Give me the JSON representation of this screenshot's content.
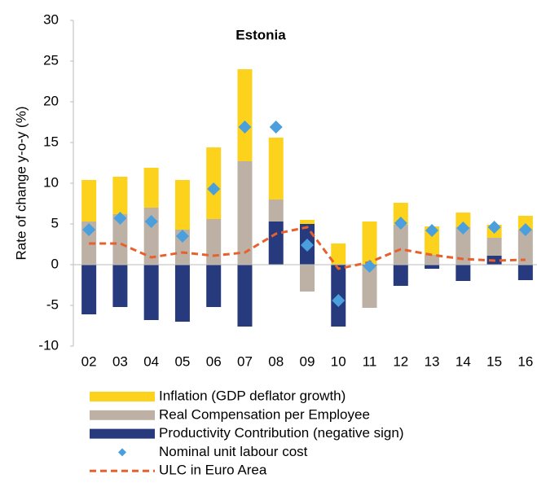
{
  "chart_data": {
    "type": "bar",
    "stacked": true,
    "title": "Estonia",
    "y_label": "Rate of change y-o-y (%)",
    "categories": [
      "02",
      "03",
      "04",
      "05",
      "06",
      "07",
      "08",
      "09",
      "10",
      "11",
      "12",
      "13",
      "14",
      "15",
      "16"
    ],
    "series": [
      {
        "name": "Inflation (GDP deflator growth)",
        "type": "bar",
        "color": "#fcd21c",
        "values": [
          5.1,
          4.6,
          4.9,
          6.1,
          8.8,
          11.3,
          7.6,
          0.5,
          2.6,
          5.3,
          2.7,
          3.5,
          1.8,
          1.6,
          1.7
        ]
      },
      {
        "name": "Real Compensation per Employee",
        "type": "bar",
        "color": "#bdb1a5",
        "values": [
          5.3,
          6.2,
          7.0,
          4.3,
          5.6,
          12.7,
          2.7,
          -3.3,
          0.0,
          -5.2,
          4.9,
          1.2,
          4.6,
          2.2,
          4.3
        ]
      },
      {
        "name": "Productivity Contribution (negative sign)",
        "type": "bar",
        "color": "#283a7e",
        "values": [
          -6.1,
          -5.2,
          -6.8,
          -7.0,
          -5.2,
          -7.6,
          5.3,
          5.0,
          -7.6,
          -0.1,
          -2.6,
          -0.5,
          -2.0,
          1.1,
          -1.9
        ]
      },
      {
        "name": "Nominal unit labour cost",
        "type": "scatter",
        "color": "#4a9fdc",
        "values": [
          4.3,
          5.7,
          5.3,
          3.5,
          9.3,
          16.9,
          16.9,
          2.4,
          -4.4,
          -0.2,
          5.1,
          4.2,
          4.5,
          4.6,
          4.3
        ]
      },
      {
        "name": "ULC in Euro Area",
        "type": "line",
        "color": "#e8602c",
        "values": [
          2.6,
          2.6,
          0.9,
          1.5,
          1.1,
          1.5,
          3.8,
          4.6,
          -0.5,
          0.3,
          1.9,
          1.2,
          0.7,
          0.5,
          0.6
        ]
      }
    ],
    "ylim": [
      -10,
      30
    ],
    "yticks": [
      -10,
      -5,
      0,
      5,
      10,
      15,
      20,
      25,
      30
    ],
    "grid": false
  }
}
